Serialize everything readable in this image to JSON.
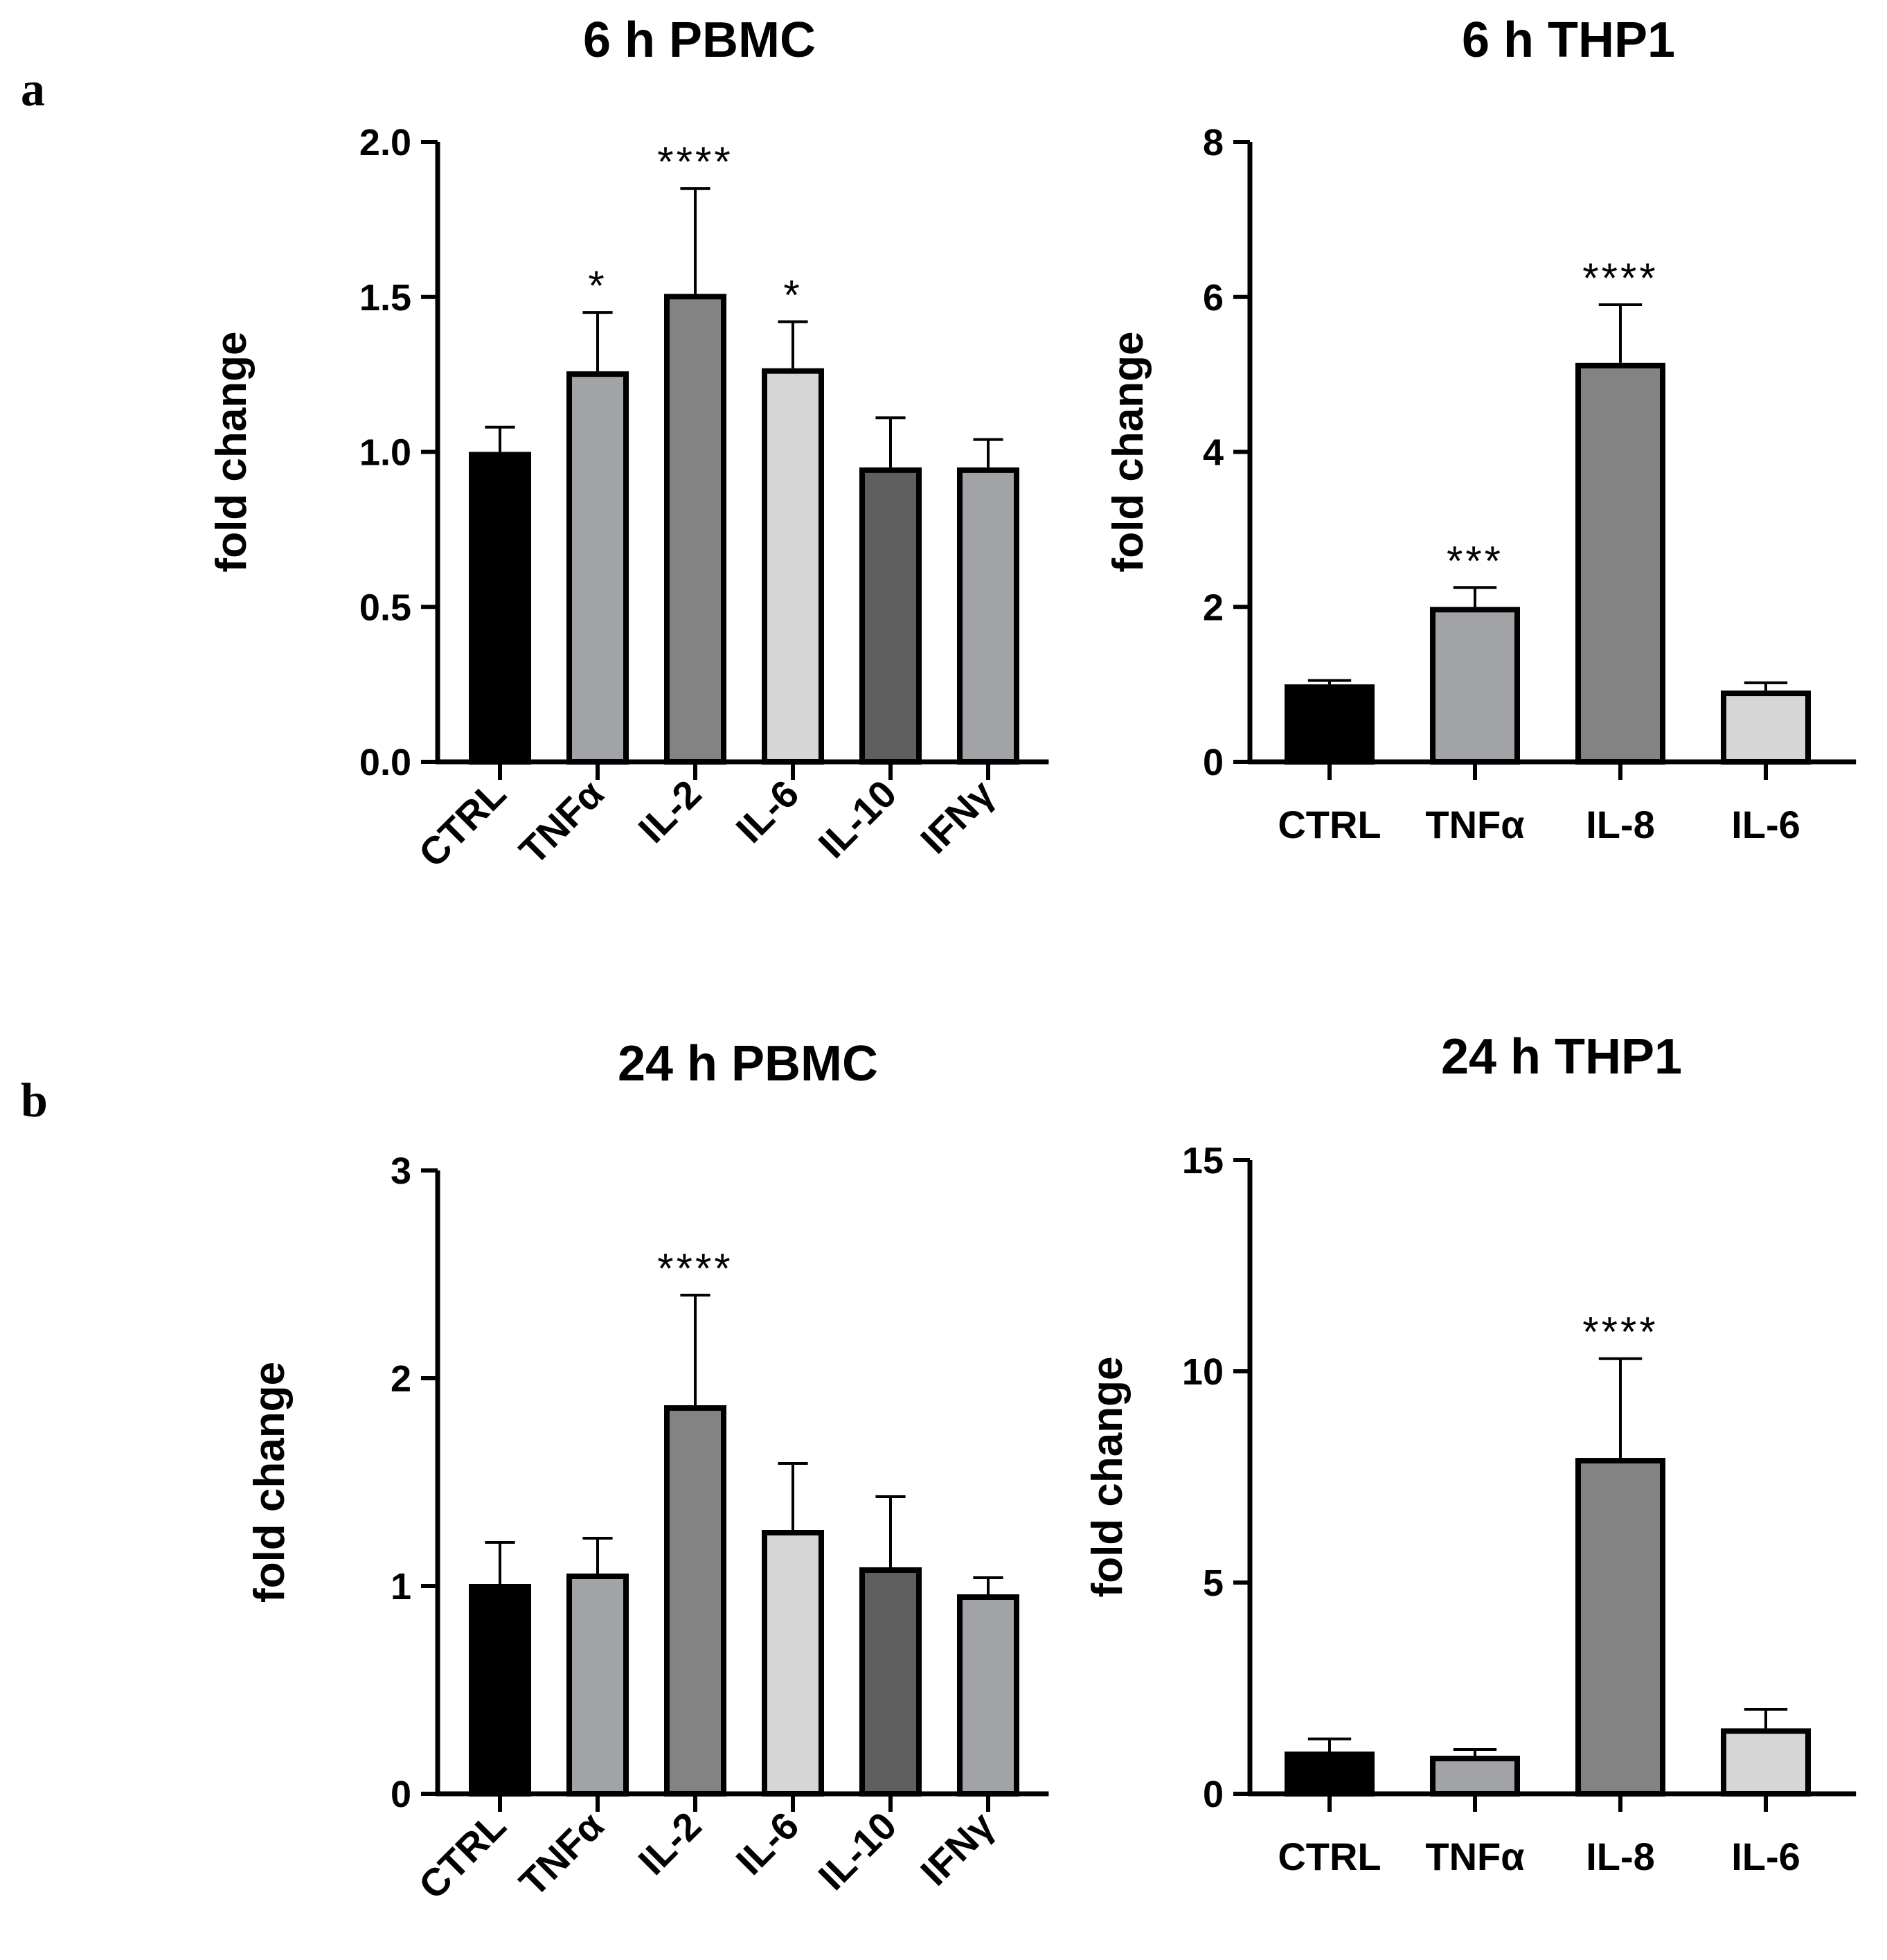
{
  "panels": [
    {
      "id": "a",
      "label": "a"
    },
    {
      "id": "b",
      "label": "b"
    }
  ],
  "chart_data": [
    {
      "type": "bar",
      "panel": "a",
      "title": "6 h PBMC",
      "xlabel": "",
      "ylabel": "fold change",
      "ylim": [
        0,
        2.0
      ],
      "yticks": [
        "0.0",
        "0.5",
        "1.0",
        "1.5",
        "2.0"
      ],
      "ytick_values": [
        0,
        0.5,
        1.0,
        1.5,
        2.0
      ],
      "rotate_categories": true,
      "categories": [
        "CTRL",
        "TNFα",
        "IL-2",
        "IL-6",
        "IL-10",
        "IFNγ"
      ],
      "values": [
        1.0,
        1.26,
        1.51,
        1.27,
        0.95,
        0.95
      ],
      "errors": [
        0.08,
        0.19,
        0.34,
        0.15,
        0.16,
        0.09
      ],
      "significance": [
        "",
        "*",
        "****",
        "*",
        "",
        ""
      ],
      "colors": [
        "#000000",
        "#a2a3a6",
        "#838383",
        "#d6d6d6",
        "#5f5f5f",
        "#a2a3a6"
      ]
    },
    {
      "type": "bar",
      "panel": "a",
      "title": "6 h THP1",
      "xlabel": "",
      "ylabel": "fold change",
      "ylim": [
        0,
        8
      ],
      "yticks": [
        "0",
        "2",
        "4",
        "6",
        "8"
      ],
      "ytick_values": [
        0,
        2,
        4,
        6,
        8
      ],
      "rotate_categories": false,
      "categories": [
        "CTRL",
        "TNFα",
        "IL-8",
        "IL-6"
      ],
      "values": [
        1.0,
        2.0,
        5.15,
        0.92
      ],
      "errors": [
        0.05,
        0.25,
        0.75,
        0.1
      ],
      "significance": [
        "",
        "***",
        "****",
        ""
      ],
      "colors": [
        "#000000",
        "#a2a3a6",
        "#838383",
        "#d6d6d6"
      ]
    },
    {
      "type": "bar",
      "panel": "b",
      "title": "24 h PBMC",
      "xlabel": "",
      "ylabel": "fold change",
      "ylim": [
        0,
        3
      ],
      "yticks": [
        "0",
        "1",
        "2",
        "3"
      ],
      "ytick_values": [
        0,
        1,
        2,
        3
      ],
      "rotate_categories": true,
      "categories": [
        "CTRL",
        "TNFα",
        "IL-2",
        "IL-6",
        "IL-10",
        "IFNγ"
      ],
      "values": [
        1.01,
        1.06,
        1.87,
        1.27,
        1.09,
        0.96
      ],
      "errors": [
        0.2,
        0.17,
        0.53,
        0.32,
        0.34,
        0.08
      ],
      "significance": [
        "",
        "",
        "****",
        "",
        "",
        ""
      ],
      "colors": [
        "#000000",
        "#a2a3a6",
        "#838383",
        "#d6d6d6",
        "#5f5f5f",
        "#a2a3a6"
      ]
    },
    {
      "type": "bar",
      "panel": "b",
      "title": "24 h THP1",
      "xlabel": "",
      "ylabel": "fold change",
      "ylim": [
        0,
        15
      ],
      "yticks": [
        "0",
        "5",
        "10",
        "15"
      ],
      "ytick_values": [
        0,
        5,
        10,
        15
      ],
      "rotate_categories": false,
      "categories": [
        "CTRL",
        "TNFα",
        "IL-8",
        "IL-6"
      ],
      "values": [
        1.0,
        0.9,
        7.95,
        1.55
      ],
      "errors": [
        0.3,
        0.15,
        2.35,
        0.45
      ],
      "significance": [
        "",
        "",
        "****",
        ""
      ],
      "colors": [
        "#000000",
        "#a2a3a6",
        "#838383",
        "#d6d6d6"
      ]
    }
  ]
}
